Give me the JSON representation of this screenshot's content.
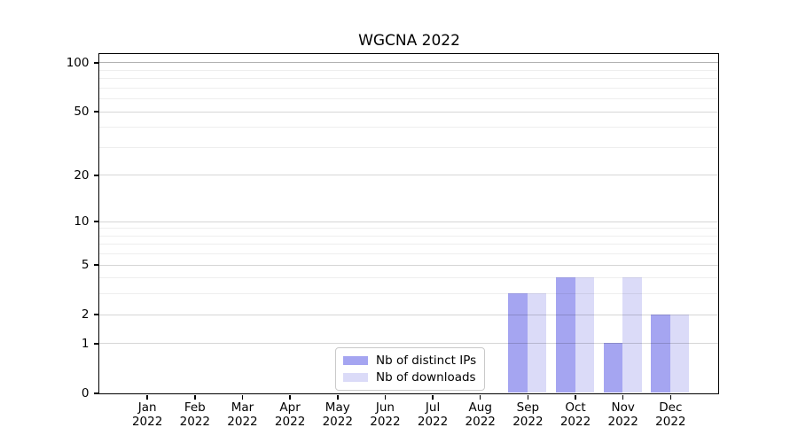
{
  "chart_data": {
    "type": "bar",
    "title": "WGCNA 2022",
    "xticklabels": [
      [
        "Jan",
        "2022"
      ],
      [
        "Feb",
        "2022"
      ],
      [
        "Mar",
        "2022"
      ],
      [
        "Apr",
        "2022"
      ],
      [
        "May",
        "2022"
      ],
      [
        "Jun",
        "2022"
      ],
      [
        "Jul",
        "2022"
      ],
      [
        "Aug",
        "2022"
      ],
      [
        "Sep",
        "2022"
      ],
      [
        "Oct",
        "2022"
      ],
      [
        "Nov",
        "2022"
      ],
      [
        "Dec",
        "2022"
      ]
    ],
    "series": [
      {
        "name": "Nb of distinct IPs",
        "color": "#a5a5f1",
        "values": [
          0,
          0,
          0,
          0,
          0,
          0,
          0,
          0,
          3,
          4,
          1,
          2
        ]
      },
      {
        "name": "Nb of downloads",
        "color": "#dbdbf8",
        "values": [
          0,
          0,
          0,
          0,
          0,
          0,
          0,
          0,
          3,
          4,
          4,
          2
        ]
      }
    ],
    "yticks": [
      0,
      1,
      2,
      5,
      10,
      20,
      50,
      100
    ],
    "minor_gridlines": [
      3,
      4,
      6,
      7,
      8,
      9,
      30,
      40,
      60,
      70,
      80,
      90
    ],
    "yscale": "log10(1+v)",
    "ylim": [
      0,
      113
    ],
    "grid": "on",
    "legend_position": "lower center"
  }
}
